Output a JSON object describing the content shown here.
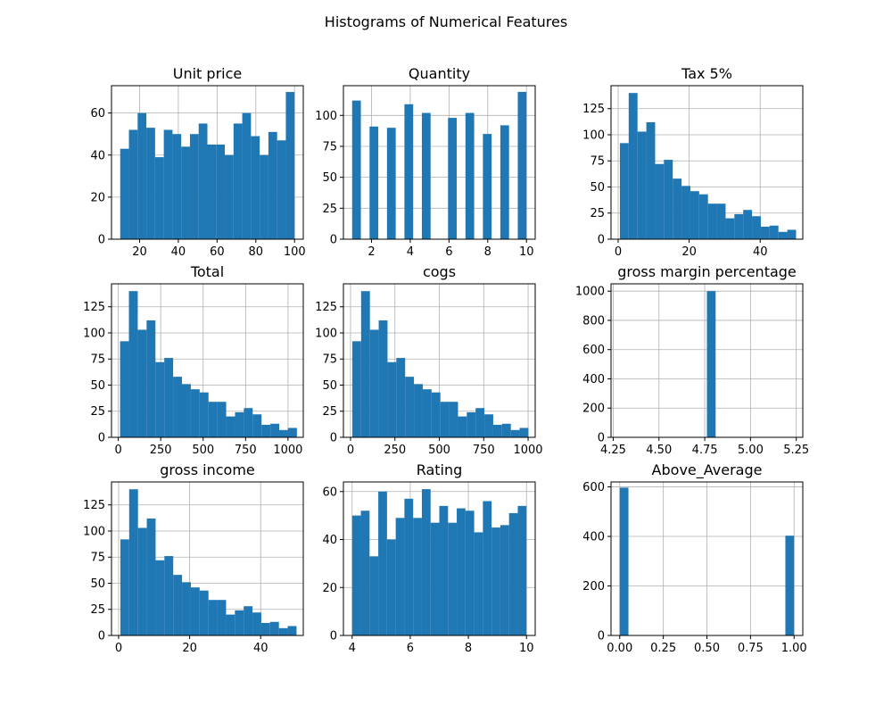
{
  "chart_data": {
    "title": "Histograms of Numerical Features",
    "type": "bar",
    "grid": true,
    "color": "#1f77b4",
    "subplots": [
      {
        "title": "Unit price",
        "type": "bar",
        "xlim": [
          5.5,
          104.5
        ],
        "ylim": [
          0,
          73
        ],
        "xticks": [
          20,
          40,
          60,
          80,
          100
        ],
        "yticks": [
          0,
          20,
          40,
          60
        ],
        "bins": [
          10,
          14.5,
          19,
          23.5,
          28,
          32.5,
          37,
          41.5,
          46,
          50.5,
          55,
          59.5,
          64,
          68.5,
          73,
          77.5,
          82,
          86.5,
          91,
          95.5,
          100
        ],
        "values": [
          43,
          52,
          60,
          53,
          39,
          52,
          50,
          44,
          50,
          55,
          45,
          45,
          40,
          55,
          60,
          49,
          40,
          51,
          47,
          70
        ]
      },
      {
        "title": "Quantity",
        "type": "bar",
        "xlim": [
          0.55,
          10.45
        ],
        "ylim": [
          0,
          124
        ],
        "xticks": [
          2,
          4,
          6,
          8,
          10
        ],
        "yticks": [
          0,
          25,
          50,
          75,
          100
        ],
        "bins": [
          1,
          1.45,
          1.9,
          2.35,
          2.8,
          3.25,
          3.7,
          4.15,
          4.6,
          5.05,
          5.5,
          5.95,
          6.4,
          6.85,
          7.3,
          7.75,
          8.2,
          8.65,
          9.1,
          9.55,
          10
        ],
        "values": [
          112,
          0,
          91,
          0,
          90,
          0,
          109,
          0,
          102,
          0,
          0,
          98,
          0,
          102,
          0,
          85,
          0,
          92,
          0,
          119
        ]
      },
      {
        "title": "Tax 5%",
        "type": "bar",
        "xlim": [
          -2,
          52
        ],
        "ylim": [
          0,
          147
        ],
        "xticks": [
          0,
          20,
          40
        ],
        "yticks": [
          0,
          25,
          50,
          75,
          100,
          125
        ],
        "bins": [
          0.5,
          2.98,
          5.46,
          7.94,
          10.42,
          12.9,
          15.38,
          17.86,
          20.34,
          22.82,
          25.3,
          27.78,
          30.26,
          32.74,
          35.22,
          37.7,
          40.18,
          42.66,
          45.14,
          47.62,
          50.1
        ],
        "values": [
          92,
          140,
          103,
          112,
          72,
          76,
          58,
          51,
          46,
          43,
          34,
          34,
          20,
          24,
          28,
          22,
          12,
          13,
          7,
          9
        ]
      },
      {
        "title": "Total",
        "type": "bar",
        "xlim": [
          -40,
          1090
        ],
        "ylim": [
          0,
          147
        ],
        "xticks": [
          0,
          250,
          500,
          750,
          1000
        ],
        "yticks": [
          0,
          25,
          50,
          75,
          100,
          125
        ],
        "bins": [
          10.5,
          62.6,
          114.7,
          166.8,
          218.9,
          271,
          323.1,
          375.2,
          427.3,
          479.4,
          531.5,
          583.6,
          635.7,
          687.8,
          739.9,
          792,
          844.1,
          896.2,
          948.3,
          1000.4,
          1052.5
        ],
        "values": [
          92,
          140,
          103,
          112,
          72,
          76,
          58,
          51,
          46,
          43,
          34,
          34,
          20,
          24,
          28,
          22,
          12,
          13,
          7,
          9
        ]
      },
      {
        "title": "cogs",
        "type": "bar",
        "xlim": [
          -40,
          1040
        ],
        "ylim": [
          0,
          147
        ],
        "xticks": [
          0,
          250,
          500,
          750,
          1000
        ],
        "yticks": [
          0,
          25,
          50,
          75,
          100,
          125
        ],
        "bins": [
          10,
          59.6,
          109.2,
          158.8,
          208.4,
          258,
          307.6,
          357.2,
          406.8,
          456.4,
          506,
          555.6,
          605.2,
          654.8,
          704.4,
          754,
          803.6,
          853.2,
          902.8,
          952.4,
          1002
        ],
        "values": [
          92,
          140,
          103,
          112,
          72,
          76,
          58,
          51,
          46,
          43,
          34,
          34,
          20,
          24,
          28,
          22,
          12,
          13,
          7,
          9
        ]
      },
      {
        "title": "gross margin percentage",
        "type": "bar",
        "xlim": [
          4.238,
          5.2857
        ],
        "ylim": [
          0,
          1050
        ],
        "xticks": [
          4.25,
          4.5,
          4.75,
          5.0,
          5.25
        ],
        "xticklabels": [
          "4.25",
          "4.50",
          "4.75",
          "5.00",
          "5.25"
        ],
        "yticks": [
          0,
          200,
          400,
          600,
          800,
          1000
        ],
        "bins": [
          4.7619,
          4.8095
        ],
        "values": [
          1000
        ]
      },
      {
        "title": "gross income",
        "type": "bar",
        "xlim": [
          -2,
          52
        ],
        "ylim": [
          0,
          147
        ],
        "xticks": [
          0,
          20,
          40
        ],
        "yticks": [
          0,
          25,
          50,
          75,
          100,
          125
        ],
        "bins": [
          0.5,
          2.98,
          5.46,
          7.94,
          10.42,
          12.9,
          15.38,
          17.86,
          20.34,
          22.82,
          25.3,
          27.78,
          30.26,
          32.74,
          35.22,
          37.7,
          40.18,
          42.66,
          45.14,
          47.62,
          50.1
        ],
        "values": [
          92,
          140,
          103,
          112,
          72,
          76,
          58,
          51,
          46,
          43,
          34,
          34,
          20,
          24,
          28,
          22,
          12,
          13,
          7,
          9
        ]
      },
      {
        "title": "Rating",
        "type": "bar",
        "xlim": [
          3.7,
          10.3
        ],
        "ylim": [
          0,
          64
        ],
        "xticks": [
          4,
          6,
          8,
          10
        ],
        "yticks": [
          0,
          20,
          40,
          60
        ],
        "bins": [
          4,
          4.3,
          4.6,
          4.9,
          5.2,
          5.5,
          5.8,
          6.1,
          6.4,
          6.7,
          7,
          7.3,
          7.6,
          7.9,
          8.2,
          8.5,
          8.8,
          9.1,
          9.4,
          9.7,
          10
        ],
        "values": [
          50,
          52,
          33,
          60,
          40,
          49,
          57,
          49,
          61,
          47,
          54,
          47,
          53,
          52,
          43,
          56,
          45,
          46,
          51,
          54
        ]
      },
      {
        "title": "Above_Average",
        "type": "bar",
        "xlim": [
          -0.05,
          1.05
        ],
        "ylim": [
          0,
          620
        ],
        "xticks": [
          0.0,
          0.25,
          0.5,
          0.75,
          1.0
        ],
        "xticklabels": [
          "0.00",
          "0.25",
          "0.50",
          "0.75",
          "1.00"
        ],
        "yticks": [
          0,
          200,
          400,
          600
        ],
        "bins": [
          0,
          0.05,
          0.1,
          0.15,
          0.2,
          0.25,
          0.3,
          0.35,
          0.4,
          0.45,
          0.5,
          0.55,
          0.6,
          0.65,
          0.7,
          0.75,
          0.8,
          0.85,
          0.9,
          0.95,
          1.0
        ],
        "values": [
          597,
          0,
          0,
          0,
          0,
          0,
          0,
          0,
          0,
          0,
          0,
          0,
          0,
          0,
          0,
          0,
          0,
          0,
          0,
          403
        ]
      }
    ]
  }
}
